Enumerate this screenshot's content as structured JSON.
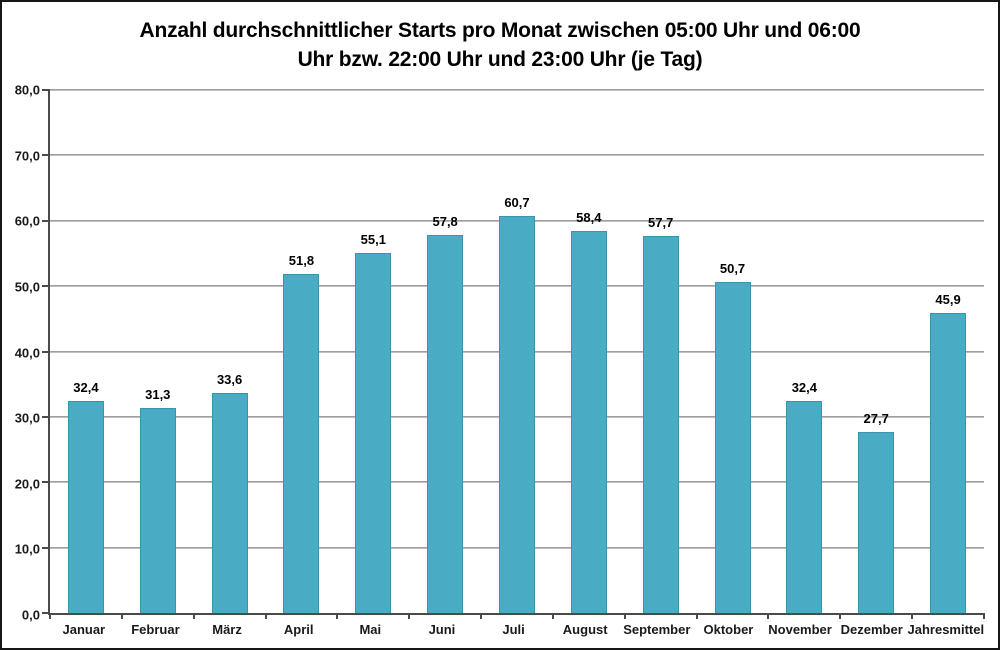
{
  "title": {
    "line1": "Anzahl durchschnittlicher Starts pro Monat zwischen 05:00 Uhr und 06:00",
    "line2": "Uhr bzw. 22:00 Uhr und 23:00 Uhr (je Tag)"
  },
  "chart_data": {
    "type": "bar",
    "title": "Anzahl durchschnittlicher Starts pro Monat zwischen 05:00 Uhr und 06:00 Uhr bzw. 22:00 Uhr und 23:00 Uhr (je Tag)",
    "categories": [
      "Januar",
      "Februar",
      "März",
      "April",
      "Mai",
      "Juni",
      "Juli",
      "August",
      "September",
      "Oktober",
      "November",
      "Dezember",
      "Jahresmittel"
    ],
    "values": [
      32.4,
      31.3,
      33.6,
      51.8,
      55.1,
      57.8,
      60.7,
      58.4,
      57.7,
      50.7,
      32.4,
      27.7,
      45.9
    ],
    "value_labels": [
      "32,4",
      "31,3",
      "33,6",
      "51,8",
      "55,1",
      "57,8",
      "60,7",
      "58,4",
      "57,7",
      "50,7",
      "32,4",
      "27,7",
      "45,9"
    ],
    "xlabel": "",
    "ylabel": "",
    "ylim": [
      0,
      80
    ],
    "ytick_step": 10,
    "ytick_labels": [
      "0,0",
      "10,0",
      "20,0",
      "30,0",
      "40,0",
      "50,0",
      "60,0",
      "70,0",
      "80,0"
    ],
    "grid": true,
    "legend_position": "none",
    "bar_color": "#4AABC5",
    "bar_border_color": "#3B93AD",
    "gridline_color": "#9a9a9a",
    "axis_color": "#4a4a4a"
  }
}
